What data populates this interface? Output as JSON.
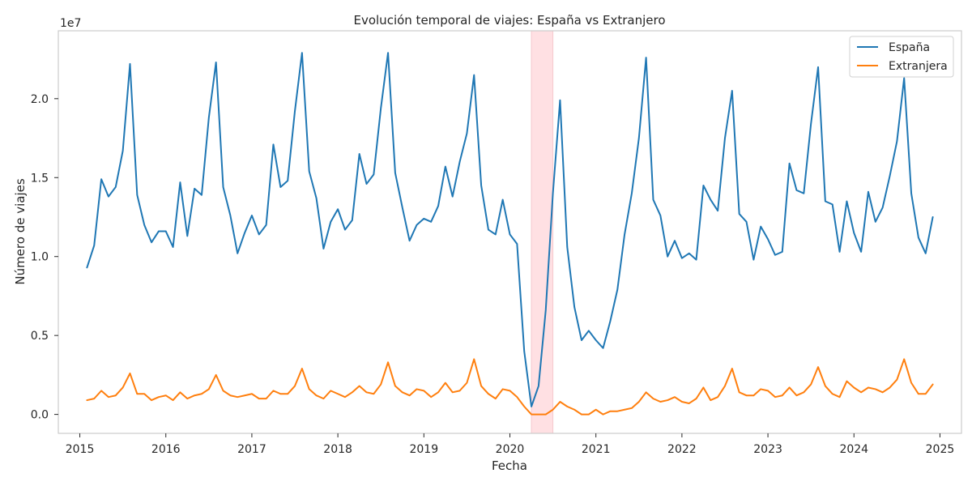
{
  "chart_data": {
    "type": "line",
    "title": "Evolución temporal de viajes: España vs Extranjero",
    "xlabel": "Fecha",
    "ylabel": "Número de viajes",
    "y_scale_label": "1e7",
    "x_start": "2015-02",
    "x_ticks": [
      "2015",
      "2016",
      "2017",
      "2018",
      "2019",
      "2020",
      "2021",
      "2022",
      "2023",
      "2024",
      "2025"
    ],
    "y_ticks": [
      "0.0",
      "0.5",
      "1.0",
      "1.5",
      "2.0"
    ],
    "xlim": [
      "2014-10",
      "2025-04"
    ],
    "ylim": [
      -1.2,
      24.3
    ],
    "y_unit": "millions",
    "grid": false,
    "legend_position": "top-right",
    "highlight_span": {
      "from": "2020-04",
      "to": "2020-07",
      "color": "#ffe0e3"
    },
    "series": [
      {
        "name": "España",
        "color": "#1f77b4",
        "values": [
          9.3,
          10.7,
          14.9,
          13.8,
          14.4,
          16.7,
          22.2,
          13.9,
          12.0,
          10.9,
          11.6,
          11.6,
          10.6,
          14.7,
          11.3,
          14.3,
          13.9,
          18.8,
          22.3,
          14.4,
          12.6,
          10.2,
          11.5,
          12.6,
          11.4,
          12.0,
          17.1,
          14.4,
          14.8,
          19.2,
          22.9,
          15.4,
          13.7,
          10.5,
          12.2,
          13.0,
          11.7,
          12.3,
          16.5,
          14.6,
          15.2,
          19.4,
          22.9,
          15.3,
          13.1,
          11.0,
          12.0,
          12.4,
          12.2,
          13.2,
          15.7,
          13.8,
          16.0,
          17.8,
          21.5,
          14.5,
          11.7,
          11.4,
          13.6,
          11.4,
          10.8,
          4.0,
          0.5,
          1.8,
          6.6,
          14.0,
          19.9,
          10.6,
          6.8,
          4.7,
          5.3,
          4.7,
          4.2,
          5.9,
          7.9,
          11.4,
          14.0,
          17.5,
          22.6,
          13.6,
          12.6,
          10.0,
          11.0,
          9.9,
          10.2,
          9.8,
          14.5,
          13.6,
          12.9,
          17.5,
          20.5,
          12.7,
          12.2,
          9.8,
          11.9,
          11.1,
          10.1,
          10.3,
          15.9,
          14.2,
          14.0,
          18.4,
          22.0,
          13.5,
          13.3,
          10.3,
          13.5,
          11.5,
          10.3,
          14.1,
          12.2,
          13.1,
          15.1,
          17.3,
          21.3,
          14.0,
          11.2,
          10.2,
          12.5
        ]
      },
      {
        "name": "Extranjera",
        "color": "#ff7f0e",
        "values": [
          0.9,
          1.0,
          1.5,
          1.1,
          1.2,
          1.7,
          2.6,
          1.3,
          1.3,
          0.9,
          1.1,
          1.2,
          0.9,
          1.4,
          1.0,
          1.2,
          1.3,
          1.6,
          2.5,
          1.5,
          1.2,
          1.1,
          1.2,
          1.3,
          1.0,
          1.0,
          1.5,
          1.3,
          1.3,
          1.8,
          2.9,
          1.6,
          1.2,
          1.0,
          1.5,
          1.3,
          1.1,
          1.4,
          1.8,
          1.4,
          1.3,
          1.9,
          3.3,
          1.8,
          1.4,
          1.2,
          1.6,
          1.5,
          1.1,
          1.4,
          2.0,
          1.4,
          1.5,
          2.0,
          3.5,
          1.8,
          1.3,
          1.0,
          1.6,
          1.5,
          1.1,
          0.5,
          0.0,
          0.0,
          0.0,
          0.3,
          0.8,
          0.5,
          0.3,
          0.0,
          0.0,
          0.3,
          0.0,
          0.2,
          0.2,
          0.3,
          0.4,
          0.8,
          1.4,
          1.0,
          0.8,
          0.9,
          1.1,
          0.8,
          0.7,
          1.0,
          1.7,
          0.9,
          1.1,
          1.8,
          2.9,
          1.4,
          1.2,
          1.2,
          1.6,
          1.5,
          1.1,
          1.2,
          1.7,
          1.2,
          1.4,
          1.9,
          3.0,
          1.8,
          1.3,
          1.1,
          2.1,
          1.7,
          1.4,
          1.7,
          1.6,
          1.4,
          1.7,
          2.2,
          3.5,
          2.0,
          1.3,
          1.3,
          1.9
        ]
      }
    ]
  }
}
